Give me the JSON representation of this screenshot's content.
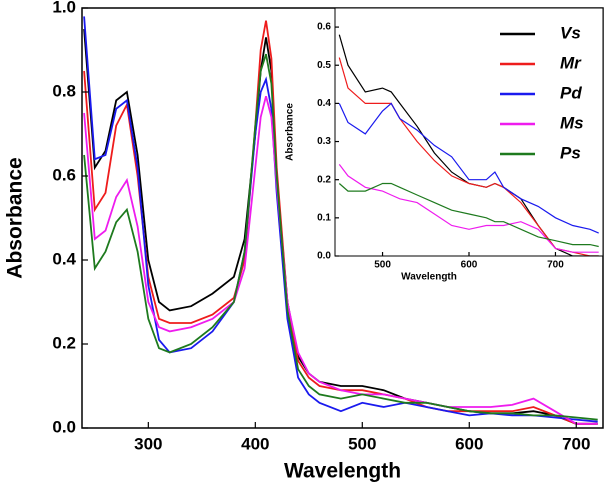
{
  "chart_data": [
    {
      "type": "line",
      "xlabel": "Wavelength",
      "ylabel": "Absorbance",
      "xlim": [
        238,
        725
      ],
      "ylim": [
        0,
        1.0
      ],
      "xticks": [
        300,
        400,
        500,
        600,
        700
      ],
      "yticks": [
        {
          "value": 0,
          "label": "0.0"
        },
        0.2,
        0.4,
        0.6,
        0.8,
        {
          "value": 1.0,
          "label": "1.0"
        }
      ],
      "x": [
        240,
        250,
        260,
        270,
        280,
        290,
        300,
        310,
        320,
        340,
        360,
        380,
        390,
        400,
        405,
        410,
        415,
        420,
        430,
        440,
        450,
        460,
        480,
        500,
        520,
        540,
        560,
        580,
        600,
        620,
        640,
        660,
        680,
        700,
        720
      ],
      "series": [
        {
          "name": "Vs",
          "color": "#000000",
          "values": [
            0.95,
            0.62,
            0.66,
            0.78,
            0.8,
            0.65,
            0.4,
            0.3,
            0.28,
            0.29,
            0.32,
            0.36,
            0.45,
            0.7,
            0.85,
            0.93,
            0.85,
            0.6,
            0.3,
            0.17,
            0.13,
            0.11,
            0.1,
            0.1,
            0.09,
            0.07,
            0.06,
            0.05,
            0.04,
            0.035,
            0.035,
            0.04,
            0.03,
            0.01,
            0.01
          ]
        },
        {
          "name": "Mr",
          "color": "#ee1c1c",
          "values": [
            0.85,
            0.52,
            0.56,
            0.72,
            0.77,
            0.6,
            0.36,
            0.26,
            0.25,
            0.25,
            0.27,
            0.31,
            0.4,
            0.72,
            0.9,
            0.97,
            0.88,
            0.62,
            0.3,
            0.16,
            0.12,
            0.1,
            0.09,
            0.09,
            0.08,
            0.07,
            0.05,
            0.04,
            0.04,
            0.04,
            0.04,
            0.05,
            0.03,
            0.01,
            0.01
          ]
        },
        {
          "name": "Pd",
          "color": "#1a1aee",
          "values": [
            0.98,
            0.64,
            0.65,
            0.76,
            0.78,
            0.62,
            0.34,
            0.21,
            0.18,
            0.19,
            0.23,
            0.3,
            0.42,
            0.7,
            0.8,
            0.83,
            0.76,
            0.56,
            0.26,
            0.12,
            0.08,
            0.06,
            0.04,
            0.06,
            0.05,
            0.06,
            0.05,
            0.04,
            0.03,
            0.035,
            0.03,
            0.03,
            0.025,
            0.02,
            0.015
          ]
        },
        {
          "name": "Ms",
          "color": "#ee1cee",
          "values": [
            0.75,
            0.45,
            0.47,
            0.55,
            0.59,
            0.48,
            0.3,
            0.24,
            0.23,
            0.24,
            0.26,
            0.3,
            0.38,
            0.62,
            0.74,
            0.79,
            0.74,
            0.58,
            0.3,
            0.18,
            0.13,
            0.11,
            0.09,
            0.08,
            0.08,
            0.07,
            0.06,
            0.05,
            0.05,
            0.05,
            0.055,
            0.07,
            0.04,
            0.01,
            0.01
          ]
        },
        {
          "name": "Ps",
          "color": "#1e7a1e",
          "values": [
            0.65,
            0.38,
            0.42,
            0.49,
            0.52,
            0.42,
            0.26,
            0.19,
            0.18,
            0.2,
            0.24,
            0.3,
            0.42,
            0.72,
            0.85,
            0.89,
            0.82,
            0.6,
            0.28,
            0.14,
            0.1,
            0.08,
            0.07,
            0.08,
            0.07,
            0.06,
            0.06,
            0.05,
            0.04,
            0.035,
            0.035,
            0.03,
            0.03,
            0.025,
            0.02
          ]
        }
      ]
    },
    {
      "type": "line",
      "xlabel": "Wavelength",
      "ylabel": "Absorbance",
      "xlim": [
        445,
        755
      ],
      "ylim": [
        0,
        0.65
      ],
      "xticks": [
        500,
        600,
        700
      ],
      "yticks": [
        {
          "value": 0,
          "label": "0.0"
        },
        0.1,
        0.2,
        0.3,
        0.4,
        0.5,
        0.6
      ],
      "x": [
        450,
        460,
        480,
        500,
        510,
        520,
        540,
        560,
        580,
        600,
        620,
        630,
        640,
        660,
        680,
        700,
        720,
        740,
        750
      ],
      "series": [
        {
          "color": "#000000",
          "values": [
            0.58,
            0.5,
            0.43,
            0.44,
            0.43,
            0.4,
            0.34,
            0.27,
            0.22,
            0.19,
            0.18,
            0.19,
            0.18,
            0.15,
            0.08,
            0.02,
            0.0,
            0.0,
            0.0
          ]
        },
        {
          "color": "#ee1c1c",
          "values": [
            0.52,
            0.44,
            0.4,
            0.4,
            0.4,
            0.36,
            0.3,
            0.25,
            0.21,
            0.19,
            0.18,
            0.19,
            0.18,
            0.14,
            0.08,
            0.02,
            0.01,
            0.0,
            0.0
          ]
        },
        {
          "color": "#1a1aee",
          "values": [
            0.4,
            0.35,
            0.32,
            0.38,
            0.4,
            0.36,
            0.33,
            0.29,
            0.26,
            0.2,
            0.2,
            0.22,
            0.18,
            0.15,
            0.13,
            0.1,
            0.08,
            0.07,
            0.06
          ]
        },
        {
          "color": "#ee1cee",
          "values": [
            0.24,
            0.21,
            0.18,
            0.17,
            0.16,
            0.15,
            0.14,
            0.11,
            0.08,
            0.07,
            0.08,
            0.08,
            0.08,
            0.09,
            0.07,
            0.02,
            0.01,
            0.01,
            0.01
          ]
        },
        {
          "color": "#1e7a1e",
          "values": [
            0.19,
            0.17,
            0.17,
            0.19,
            0.19,
            0.18,
            0.16,
            0.14,
            0.12,
            0.11,
            0.1,
            0.09,
            0.09,
            0.07,
            0.05,
            0.04,
            0.03,
            0.03,
            0.025
          ]
        }
      ]
    }
  ]
}
